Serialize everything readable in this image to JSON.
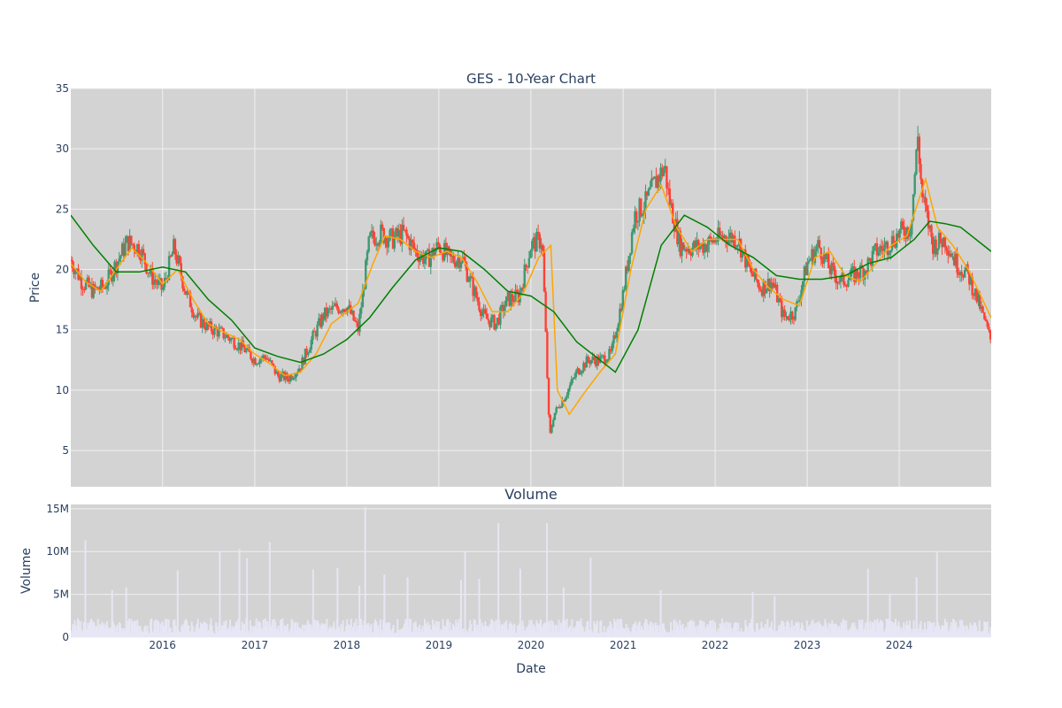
{
  "chart_data": [
    {
      "type": "candlestick",
      "title": "GES - 10-Year Chart",
      "ylabel": "Price",
      "ylim": [
        2,
        35
      ],
      "yticks": [
        5,
        10,
        15,
        20,
        25,
        30,
        35
      ],
      "xlim": [
        "2015-01-02",
        "2024-12-31"
      ],
      "xticks": [
        "2016-01-01",
        "2017-01-01",
        "2018-01-01",
        "2019-01-01",
        "2020-01-01",
        "2021-01-01",
        "2022-01-01",
        "2023-01-01",
        "2024-01-01"
      ],
      "xtick_labels": [
        "2016",
        "2017",
        "2018",
        "2019",
        "2020",
        "2021",
        "2022",
        "2023",
        "2024"
      ],
      "grid": true,
      "colors": {
        "up": "#3d9970",
        "down": "#ff4136",
        "ma_short": "#ffa500",
        "ma_long": "#008000",
        "plot_bg": "#d3d3d3",
        "grid": "#f0f0f0"
      },
      "close_series": {
        "x": [
          "2015-01-02",
          "2015-02-15",
          "2015-04-01",
          "2015-05-15",
          "2015-07-01",
          "2015-08-15",
          "2015-10-01",
          "2015-11-15",
          "2016-01-01",
          "2016-02-15",
          "2016-04-01",
          "2016-05-15",
          "2016-07-01",
          "2016-08-15",
          "2016-10-01",
          "2016-11-15",
          "2017-01-01",
          "2017-02-15",
          "2017-04-01",
          "2017-05-15",
          "2017-07-01",
          "2017-08-15",
          "2017-10-01",
          "2017-11-15",
          "2018-01-01",
          "2018-02-15",
          "2018-04-01",
          "2018-05-15",
          "2018-07-01",
          "2018-08-15",
          "2018-10-01",
          "2018-11-15",
          "2019-01-01",
          "2019-02-15",
          "2019-04-01",
          "2019-05-15",
          "2019-07-01",
          "2019-08-15",
          "2019-10-01",
          "2019-11-15",
          "2020-01-01",
          "2020-02-15",
          "2020-03-15",
          "2020-04-01",
          "2020-05-15",
          "2020-07-01",
          "2020-08-15",
          "2020-10-01",
          "2020-11-15",
          "2021-01-01",
          "2021-02-15",
          "2021-04-01",
          "2021-05-15",
          "2021-06-15",
          "2021-07-01",
          "2021-08-15",
          "2021-10-01",
          "2021-11-15",
          "2022-01-01",
          "2022-02-15",
          "2022-04-01",
          "2022-05-15",
          "2022-07-01",
          "2022-08-15",
          "2022-10-01",
          "2022-11-15",
          "2023-01-01",
          "2023-02-15",
          "2023-04-01",
          "2023-05-15",
          "2023-07-01",
          "2023-08-15",
          "2023-10-01",
          "2023-11-15",
          "2024-01-01",
          "2024-02-15",
          "2024-03-15",
          "2024-04-01",
          "2024-05-15",
          "2024-07-01",
          "2024-08-15",
          "2024-10-01",
          "2024-11-15",
          "2024-12-31"
        ],
        "close": [
          20.8,
          19.0,
          18.2,
          18.6,
          20.5,
          22.3,
          21.8,
          19.5,
          18.3,
          21.8,
          18.2,
          16.0,
          15.2,
          14.8,
          14.2,
          13.5,
          12.5,
          12.8,
          11.2,
          11.0,
          12.0,
          14.2,
          16.2,
          16.8,
          17.0,
          15.0,
          22.5,
          23.0,
          22.5,
          23.0,
          21.5,
          20.8,
          22.0,
          20.8,
          21.0,
          18.5,
          16.0,
          15.5,
          17.5,
          17.8,
          22.0,
          22.5,
          6.0,
          8.0,
          9.5,
          11.5,
          12.5,
          12.5,
          13.0,
          18.0,
          24.5,
          25.5,
          27.5,
          28.5,
          26.0,
          22.0,
          21.8,
          22.0,
          22.5,
          22.8,
          22.5,
          20.0,
          18.5,
          19.0,
          16.0,
          16.5,
          20.5,
          22.0,
          20.0,
          19.0,
          19.5,
          20.0,
          21.5,
          22.0,
          23.0,
          23.5,
          31.0,
          26.0,
          22.0,
          22.5,
          20.5,
          19.5,
          17.0,
          14.0
        ]
      },
      "ma_short": {
        "x": [
          "2015-01-02",
          "2015-03-01",
          "2015-05-01",
          "2015-07-01",
          "2015-09-01",
          "2015-11-01",
          "2016-01-01",
          "2016-03-01",
          "2016-05-01",
          "2016-07-01",
          "2016-09-01",
          "2016-11-01",
          "2017-01-01",
          "2017-03-01",
          "2017-05-01",
          "2017-07-01",
          "2017-09-01",
          "2017-11-01",
          "2018-01-01",
          "2018-02-15",
          "2018-04-15",
          "2018-06-01",
          "2018-08-01",
          "2018-10-01",
          "2018-12-01",
          "2019-02-01",
          "2019-04-01",
          "2019-06-01",
          "2019-08-01",
          "2019-10-01",
          "2019-12-01",
          "2020-02-01",
          "2020-03-20",
          "2020-04-15",
          "2020-06-01",
          "2020-08-01",
          "2020-10-01",
          "2020-12-01",
          "2021-02-01",
          "2021-04-01",
          "2021-06-01",
          "2021-08-01",
          "2021-10-01",
          "2021-12-01",
          "2022-02-01",
          "2022-04-01",
          "2022-06-01",
          "2022-08-01",
          "2022-10-01",
          "2022-12-01",
          "2023-02-01",
          "2023-04-01",
          "2023-06-01",
          "2023-08-01",
          "2023-10-01",
          "2023-12-01",
          "2024-02-01",
          "2024-04-15",
          "2024-06-01",
          "2024-08-01",
          "2024-10-01",
          "2024-12-31"
        ],
        "values": [
          20.5,
          19.0,
          18.2,
          20.0,
          21.8,
          20.5,
          18.8,
          20.0,
          17.5,
          15.5,
          14.8,
          14.2,
          13.0,
          12.2,
          11.2,
          11.5,
          13.0,
          15.5,
          16.5,
          17.2,
          20.5,
          22.8,
          22.5,
          21.5,
          21.0,
          21.5,
          21.0,
          19.0,
          16.5,
          16.5,
          18.0,
          21.0,
          22.0,
          10.0,
          8.0,
          9.8,
          11.5,
          13.0,
          20.0,
          25.0,
          27.0,
          23.5,
          21.5,
          22.5,
          22.5,
          22.5,
          20.0,
          18.5,
          17.5,
          17.0,
          21.0,
          21.5,
          19.5,
          19.0,
          20.5,
          22.0,
          22.8,
          27.5,
          23.5,
          22.0,
          20.0,
          16.0
        ]
      },
      "ma_long": {
        "x": [
          "2015-01-02",
          "2015-04-01",
          "2015-07-01",
          "2015-10-01",
          "2016-01-01",
          "2016-04-01",
          "2016-07-01",
          "2016-10-01",
          "2017-01-01",
          "2017-04-01",
          "2017-07-01",
          "2017-10-01",
          "2018-01-01",
          "2018-04-01",
          "2018-07-01",
          "2018-10-01",
          "2019-01-01",
          "2019-04-01",
          "2019-07-01",
          "2019-10-01",
          "2020-01-01",
          "2020-04-01",
          "2020-07-01",
          "2020-10-01",
          "2020-12-01",
          "2021-03-01",
          "2021-06-01",
          "2021-09-01",
          "2021-12-01",
          "2022-03-01",
          "2022-06-01",
          "2022-09-01",
          "2022-12-01",
          "2023-03-01",
          "2023-06-01",
          "2023-09-01",
          "2023-12-01",
          "2024-03-01",
          "2024-05-01",
          "2024-07-01",
          "2024-09-01",
          "2024-12-31"
        ],
        "values": [
          24.5,
          22.0,
          19.8,
          19.8,
          20.2,
          19.8,
          17.5,
          15.8,
          13.5,
          12.8,
          12.3,
          13.0,
          14.2,
          16.0,
          18.5,
          20.8,
          21.8,
          21.5,
          20.0,
          18.2,
          17.8,
          16.5,
          14.0,
          12.5,
          11.5,
          15.0,
          22.0,
          24.5,
          23.5,
          22.0,
          21.0,
          19.5,
          19.2,
          19.2,
          19.5,
          20.5,
          21.0,
          22.5,
          24.0,
          23.8,
          23.5,
          21.5
        ]
      }
    },
    {
      "type": "bar",
      "title": "Volume",
      "xlabel": "Date",
      "ylabel": "Volume",
      "ylim": [
        0,
        15500000
      ],
      "ytick_values": [
        0,
        5000000,
        10000000,
        15000000
      ],
      "ytick_labels": [
        "0",
        "5M",
        "10M",
        "15M"
      ],
      "xtick_labels": [
        "2016",
        "2017",
        "2018",
        "2019",
        "2020",
        "2021",
        "2022",
        "2023",
        "2024"
      ],
      "bar_color": "#e6e6f5",
      "spikes": {
        "x": [
          "2015-03-01",
          "2015-06-15",
          "2015-08-10",
          "2016-03-01",
          "2016-08-15",
          "2016-11-01",
          "2016-12-01",
          "2017-03-01",
          "2017-08-20",
          "2017-11-25",
          "2018-02-20",
          "2018-03-15",
          "2018-05-30",
          "2018-08-30",
          "2019-03-30",
          "2019-04-15",
          "2019-06-10",
          "2019-08-25",
          "2019-11-20",
          "2020-03-05",
          "2020-05-10",
          "2020-08-25",
          "2021-05-30",
          "2022-05-30",
          "2022-08-25",
          "2023-08-30",
          "2023-11-25",
          "2024-03-10",
          "2024-05-30"
        ],
        "values": [
          11300000,
          5500000,
          5800000,
          7800000,
          10000000,
          10300000,
          9200000,
          11100000,
          7900000,
          8100000,
          6000000,
          15200000,
          7300000,
          7000000,
          6700000,
          10000000,
          6800000,
          13300000,
          8000000,
          13300000,
          5800000,
          9300000,
          5500000,
          5300000,
          4800000,
          8000000,
          5000000,
          7000000,
          9900000
        ]
      }
    }
  ]
}
